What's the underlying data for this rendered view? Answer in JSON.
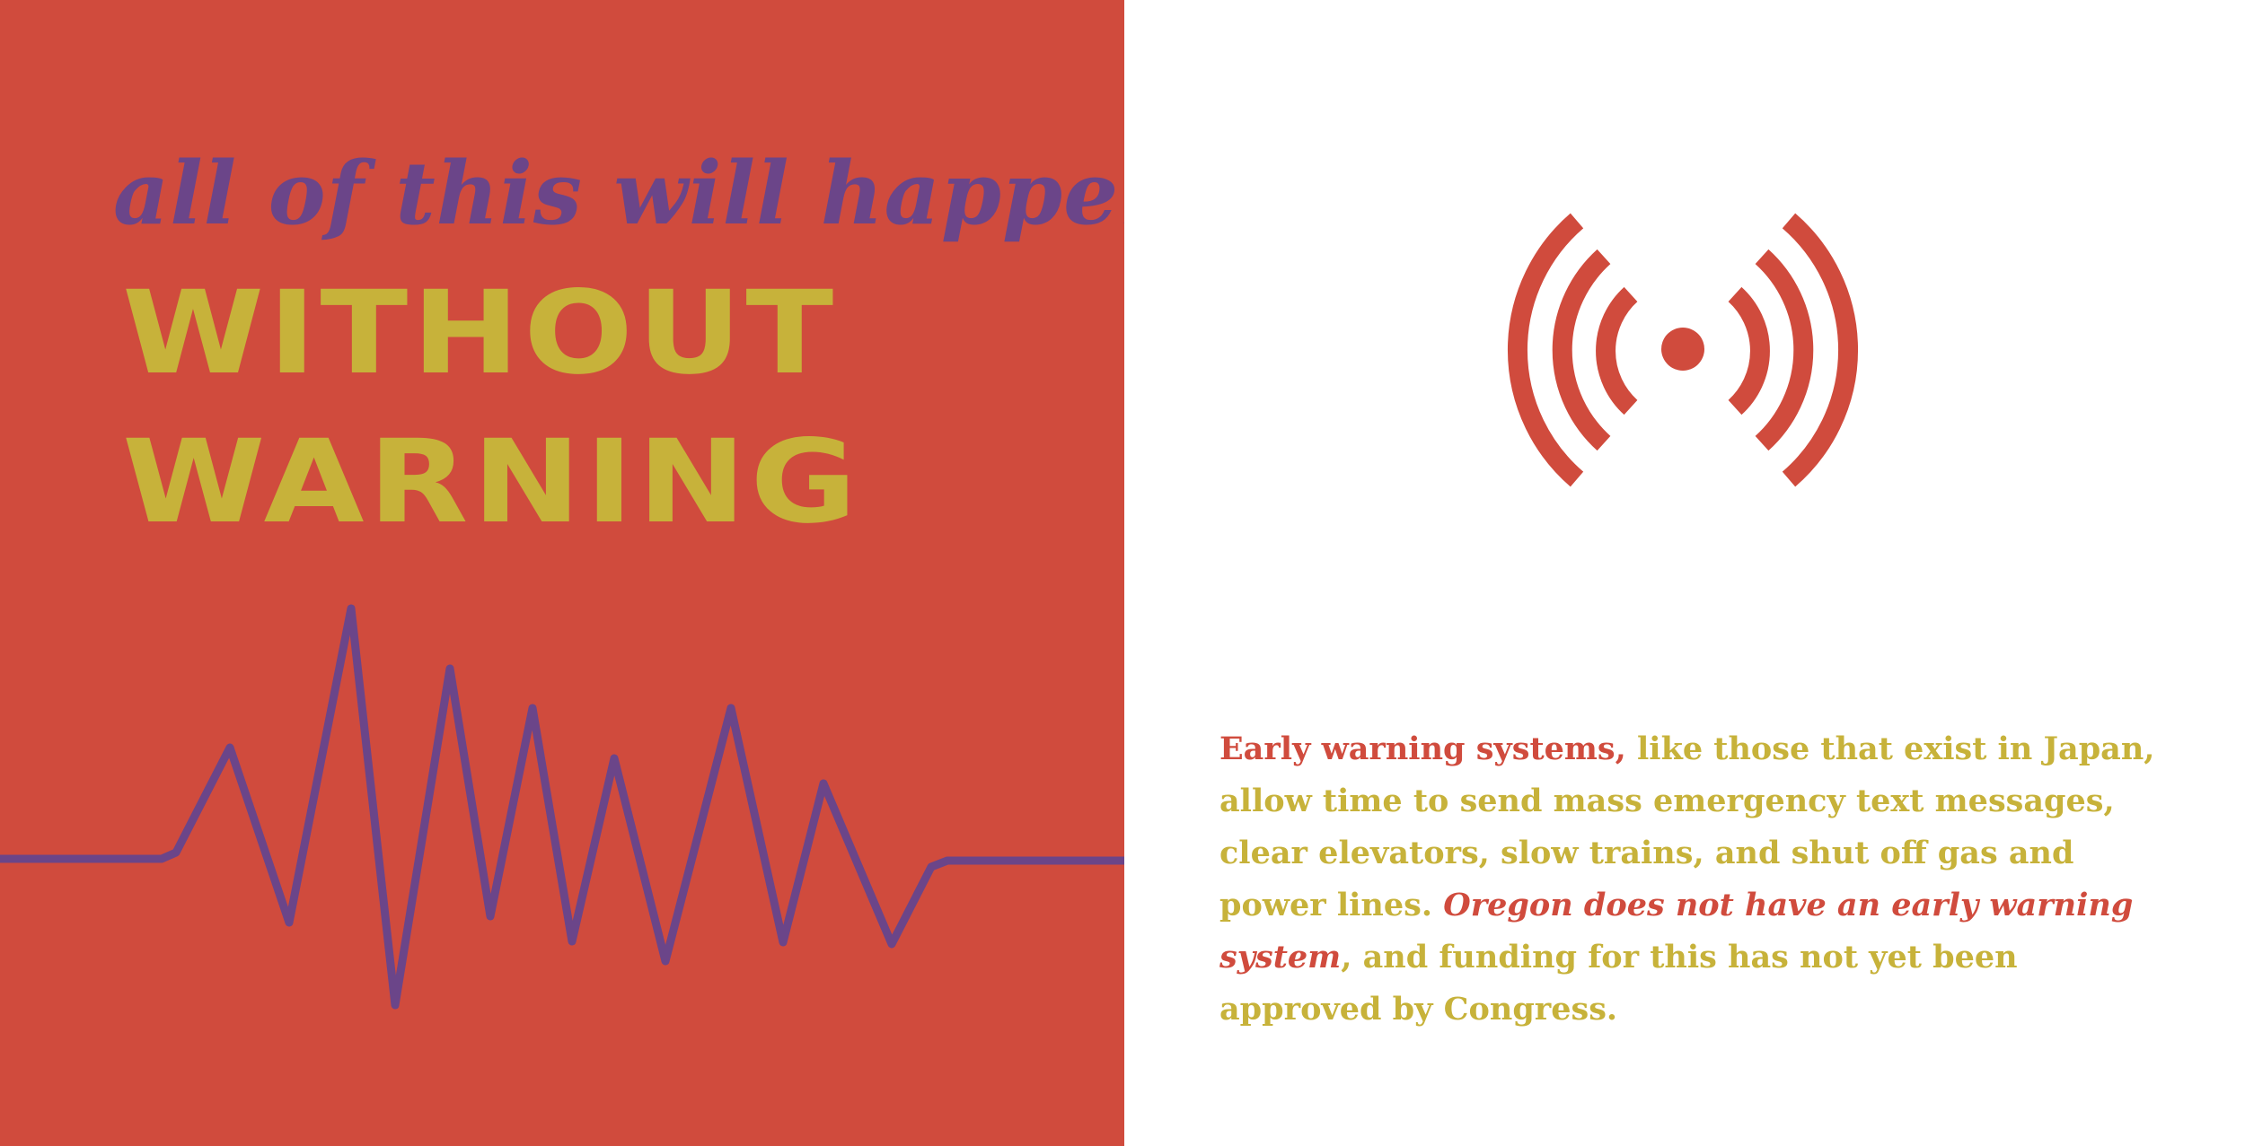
{
  "colors": {
    "panel_red": "#d04b3d",
    "purple": "#6b4589",
    "mustard": "#c7b23a",
    "background": "#ffffff"
  },
  "headline": {
    "line1": "all of this will happen",
    "line2": "WITHOUT",
    "line3": "WARNING"
  },
  "icons": {
    "seismograph": "seismograph-wave-icon",
    "broadcast": "broadcast-signal-icon"
  },
  "body": {
    "lead": "Early warning systems,",
    "part1": " like those that exist in Japan, allow time to send mass emergency text messages, clear elevators, slow trains, and shut off gas and power lines. ",
    "emphasis": "Oregon does not have an early warning system",
    "part2": ", and funding for this has not yet been approved by Congress."
  }
}
